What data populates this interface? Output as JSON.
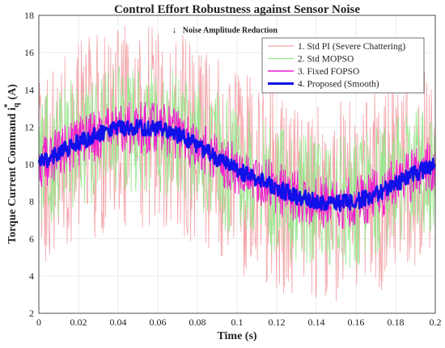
{
  "chart_data": {
    "type": "line",
    "title": "Control Effort Robustness against Sensor Noise",
    "xlabel": "Time (s)",
    "ylabel_main": "Torque Current Command i",
    "ylabel_sub": "q",
    "ylabel_sup": "*",
    "ylabel_unit": "(A)",
    "xlim": [
      0,
      0.2
    ],
    "ylim": [
      2,
      18
    ],
    "xticks": [
      0,
      0.02,
      0.04,
      0.06,
      0.08,
      0.1,
      0.12,
      0.14,
      0.16,
      0.18,
      0.2
    ],
    "xtick_labels": [
      "0",
      "0.02",
      "0.04",
      "0.06",
      "0.08",
      "0.1",
      "0.12",
      "0.14",
      "0.16",
      "0.18",
      "0.2"
    ],
    "yticks": [
      2,
      4,
      6,
      8,
      10,
      12,
      14,
      16,
      18
    ],
    "ytick_labels": [
      "2",
      "4",
      "6",
      "8",
      "10",
      "12",
      "14",
      "16",
      "18"
    ],
    "grid": true,
    "legend_position": "top-right",
    "annotation": {
      "text": "Noise Amplitude Reduction",
      "arrow": "↓",
      "x": 0.0705,
      "y": 17.25
    },
    "reference": {
      "description": "underlying trajectory (A)",
      "x": [
        0,
        0.01,
        0.02,
        0.03,
        0.04,
        0.05,
        0.06,
        0.07,
        0.08,
        0.09,
        0.1,
        0.11,
        0.12,
        0.13,
        0.14,
        0.15,
        0.16,
        0.17,
        0.18,
        0.19,
        0.2
      ],
      "y": [
        10.0,
        10.6,
        11.2,
        11.6,
        11.9,
        12.0,
        11.9,
        11.6,
        11.0,
        10.3,
        9.7,
        9.2,
        8.7,
        8.3,
        8.0,
        7.9,
        8.0,
        8.4,
        8.9,
        9.5,
        10.0
      ]
    },
    "series": [
      {
        "name": "1. Std PI (Severe Chattering)",
        "color": "#f4a3a8",
        "amplitude": 5.5,
        "linewidth": 0.8
      },
      {
        "name": "2. Std MOPSO",
        "color": "#98e88e",
        "amplitude": 3.6,
        "linewidth": 0.8
      },
      {
        "name": "3. Fixed FOPSO",
        "color": "#f01cd0",
        "amplitude": 1.4,
        "linewidth": 1.0
      },
      {
        "name": "4. Proposed (Smooth)",
        "color": "#1010e8",
        "amplitude": 0.45,
        "linewidth": 2.6
      }
    ]
  }
}
